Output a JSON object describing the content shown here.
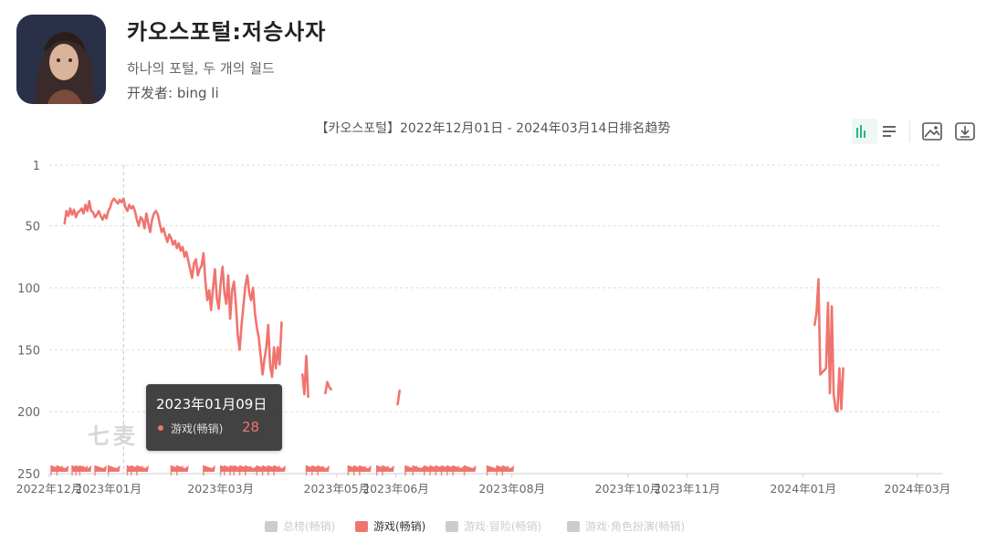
{
  "app": {
    "title": "카오스포털:저승사자",
    "subtitle": "하나의 포털, 두 개의 월드",
    "developer": "开发者: bing li"
  },
  "icons": {
    "app_icon": "app-icon-character-portrait",
    "chart_toggle": "bar-list-toggle-icon",
    "save_image": "image-icon",
    "download": "download-icon"
  },
  "colors": {
    "series": "#f0746e",
    "legend_inactive": "#cccccc",
    "grid": "#dddddd",
    "axis_text": "#666666"
  },
  "watermark": "七麦",
  "tooltip": {
    "date": "2023年01月09日",
    "series": "游戏(畅销)",
    "value": "28"
  },
  "legend": [
    {
      "label": "总榜(畅销)",
      "active": false
    },
    {
      "label": "游戏(畅销)",
      "active": true
    },
    {
      "label": "游戏·冒险(畅销)",
      "active": false
    },
    {
      "label": "游戏·角色扮演(畅销)",
      "active": false
    }
  ],
  "chart_data": {
    "type": "line",
    "title": "【카오스포털】2022年12月01日 - 2024年03月14日排名趋势",
    "xlabel": "",
    "ylabel": "",
    "y_inverted": true,
    "ylim": [
      1,
      250
    ],
    "yticks": [
      1,
      50,
      100,
      150,
      200,
      250
    ],
    "xlim": [
      "2022-12-01",
      "2024-03-14"
    ],
    "xticks": [
      {
        "date": "2022-12-01",
        "label": "2022年12月"
      },
      {
        "date": "2023-01-01",
        "label": "2023年01月"
      },
      {
        "date": "2023-03-01",
        "label": "2023年03月"
      },
      {
        "date": "2023-05-01",
        "label": "2023年05月"
      },
      {
        "date": "2023-06-01",
        "label": "2023年06月"
      },
      {
        "date": "2023-08-01",
        "label": "2023年08月"
      },
      {
        "date": "2023-10-01",
        "label": "2023年10月"
      },
      {
        "date": "2023-11-01",
        "label": "2023年11月"
      },
      {
        "date": "2024-01-01",
        "label": "2024年01月"
      },
      {
        "date": "2024-03-01",
        "label": "2024年03月"
      }
    ],
    "grid": true,
    "legend_position": "bottom",
    "crosshair_date": "2023-01-09",
    "series": [
      {
        "name": "游戏(畅销)",
        "segments": [
          [
            [
              "2022-12-09",
              48
            ],
            [
              "2022-12-10",
              38
            ],
            [
              "2022-12-11",
              42
            ],
            [
              "2022-12-12",
              36
            ],
            [
              "2022-12-13",
              41
            ],
            [
              "2022-12-14",
              37
            ],
            [
              "2022-12-15",
              43
            ],
            [
              "2022-12-16",
              39
            ],
            [
              "2022-12-17",
              38
            ],
            [
              "2022-12-18",
              36
            ],
            [
              "2022-12-19",
              40
            ],
            [
              "2022-12-20",
              33
            ],
            [
              "2022-12-21",
              38
            ],
            [
              "2022-12-22",
              30
            ],
            [
              "2022-12-23",
              38
            ],
            [
              "2022-12-24",
              39
            ],
            [
              "2022-12-25",
              43
            ],
            [
              "2022-12-26",
              41
            ],
            [
              "2022-12-27",
              38
            ],
            [
              "2022-12-28",
              42
            ],
            [
              "2022-12-29",
              45
            ],
            [
              "2022-12-30",
              41
            ],
            [
              "2022-12-31",
              44
            ],
            [
              "2023-01-01",
              38
            ],
            [
              "2023-01-02",
              35
            ],
            [
              "2023-01-03",
              30
            ],
            [
              "2023-01-04",
              28
            ],
            [
              "2023-01-05",
              30
            ],
            [
              "2023-01-06",
              32
            ],
            [
              "2023-01-07",
              29
            ],
            [
              "2023-01-08",
              31
            ],
            [
              "2023-01-09",
              28
            ],
            [
              "2023-01-10",
              35
            ],
            [
              "2023-01-11",
              38
            ],
            [
              "2023-01-12",
              33
            ],
            [
              "2023-01-13",
              36
            ],
            [
              "2023-01-14",
              34
            ],
            [
              "2023-01-15",
              38
            ],
            [
              "2023-01-16",
              45
            ],
            [
              "2023-01-17",
              50
            ],
            [
              "2023-01-18",
              43
            ],
            [
              "2023-01-19",
              45
            ],
            [
              "2023-01-20",
              52
            ],
            [
              "2023-01-21",
              40
            ],
            [
              "2023-01-22",
              48
            ],
            [
              "2023-01-23",
              55
            ],
            [
              "2023-01-24",
              45
            ],
            [
              "2023-01-25",
              40
            ],
            [
              "2023-01-26",
              38
            ],
            [
              "2023-01-27",
              41
            ],
            [
              "2023-01-28",
              48
            ],
            [
              "2023-01-29",
              55
            ],
            [
              "2023-01-30",
              52
            ],
            [
              "2023-01-31",
              58
            ],
            [
              "2023-02-01",
              63
            ],
            [
              "2023-02-02",
              57
            ],
            [
              "2023-02-03",
              60
            ],
            [
              "2023-02-04",
              65
            ],
            [
              "2023-02-05",
              62
            ],
            [
              "2023-02-06",
              68
            ],
            [
              "2023-02-07",
              64
            ],
            [
              "2023-02-08",
              70
            ],
            [
              "2023-02-09",
              67
            ],
            [
              "2023-02-10",
              75
            ],
            [
              "2023-02-11",
              71
            ],
            [
              "2023-02-12",
              78
            ],
            [
              "2023-02-13",
              85
            ],
            [
              "2023-02-14",
              92
            ],
            [
              "2023-02-15",
              80
            ],
            [
              "2023-02-16",
              77
            ],
            [
              "2023-02-17",
              90
            ],
            [
              "2023-02-18",
              85
            ],
            [
              "2023-02-19",
              82
            ],
            [
              "2023-02-20",
              72
            ],
            [
              "2023-02-21",
              95
            ],
            [
              "2023-02-22",
              110
            ],
            [
              "2023-02-23",
              102
            ],
            [
              "2023-02-24",
              118
            ],
            [
              "2023-02-25",
              100
            ],
            [
              "2023-02-26",
              85
            ],
            [
              "2023-02-27",
              108
            ],
            [
              "2023-02-28",
              117
            ],
            [
              "2023-03-01",
              96
            ],
            [
              "2023-03-02",
              83
            ],
            [
              "2023-03-03",
              104
            ],
            [
              "2023-03-04",
              113
            ],
            [
              "2023-03-05",
              90
            ],
            [
              "2023-03-06",
              125
            ],
            [
              "2023-03-07",
              102
            ],
            [
              "2023-03-08",
              95
            ],
            [
              "2023-03-09",
              114
            ],
            [
              "2023-03-10",
              138
            ],
            [
              "2023-03-11",
              150
            ],
            [
              "2023-03-12",
              130
            ],
            [
              "2023-03-13",
              114
            ],
            [
              "2023-03-14",
              98
            ],
            [
              "2023-03-15",
              90
            ],
            [
              "2023-03-16",
              104
            ],
            [
              "2023-03-17",
              110
            ],
            [
              "2023-03-18",
              100
            ],
            [
              "2023-03-19",
              120
            ],
            [
              "2023-03-20",
              132
            ],
            [
              "2023-03-21",
              140
            ],
            [
              "2023-03-22",
              155
            ],
            [
              "2023-03-23",
              170
            ],
            [
              "2023-03-24",
              158
            ],
            [
              "2023-03-25",
              148
            ],
            [
              "2023-03-26",
              130
            ],
            [
              "2023-03-27",
              163
            ],
            [
              "2023-03-28",
              172
            ],
            [
              "2023-03-29",
              148
            ],
            [
              "2023-03-30",
              165
            ],
            [
              "2023-03-31",
              148
            ],
            [
              "2023-04-01",
              162
            ],
            [
              "2023-04-02",
              128
            ]
          ],
          [
            [
              "2023-04-13",
              170
            ],
            [
              "2023-04-14",
              186
            ],
            [
              "2023-04-15",
              155
            ],
            [
              "2023-04-16",
              188
            ]
          ],
          [
            [
              "2023-04-25",
              185
            ],
            [
              "2023-04-26",
              176
            ],
            [
              "2023-04-27",
              180
            ],
            [
              "2023-04-28",
              182
            ]
          ],
          [
            [
              "2023-06-02",
              194
            ],
            [
              "2023-06-03",
              183
            ]
          ],
          [
            [
              "2024-01-07",
              130
            ],
            [
              "2024-01-08",
              120
            ],
            [
              "2024-01-09",
              93
            ],
            [
              "2024-01-10",
              170
            ],
            [
              "2024-01-13",
              165
            ],
            [
              "2024-01-14",
              112
            ],
            [
              "2024-01-15",
              185
            ],
            [
              "2024-01-16",
              115
            ],
            [
              "2024-01-17",
              185
            ],
            [
              "2024-01-18",
              198
            ],
            [
              "2024-01-19",
              200
            ],
            [
              "2024-01-20",
              165
            ],
            [
              "2024-01-21",
              198
            ],
            [
              "2024-01-22",
              165
            ]
          ]
        ],
        "markers": [
          "2022-12-02",
          "2022-12-05",
          "2022-12-13",
          "2022-12-15",
          "2022-12-17",
          "2022-12-25",
          "2023-01-01",
          "2023-01-11",
          "2023-01-13",
          "2023-01-16",
          "2023-02-03",
          "2023-02-06",
          "2023-02-20",
          "2023-03-01",
          "2023-03-03",
          "2023-03-06",
          "2023-03-08",
          "2023-03-11",
          "2023-03-14",
          "2023-03-20",
          "2023-03-23",
          "2023-03-26",
          "2023-03-29",
          "2023-04-15",
          "2023-04-18",
          "2023-04-21",
          "2023-05-07",
          "2023-05-10",
          "2023-05-13",
          "2023-05-22",
          "2023-05-25",
          "2023-06-06",
          "2023-06-10",
          "2023-06-16",
          "2023-06-19",
          "2023-06-22",
          "2023-06-25",
          "2023-06-28",
          "2023-07-01",
          "2023-07-07",
          "2023-07-19",
          "2023-07-24",
          "2023-07-27"
        ]
      }
    ]
  }
}
